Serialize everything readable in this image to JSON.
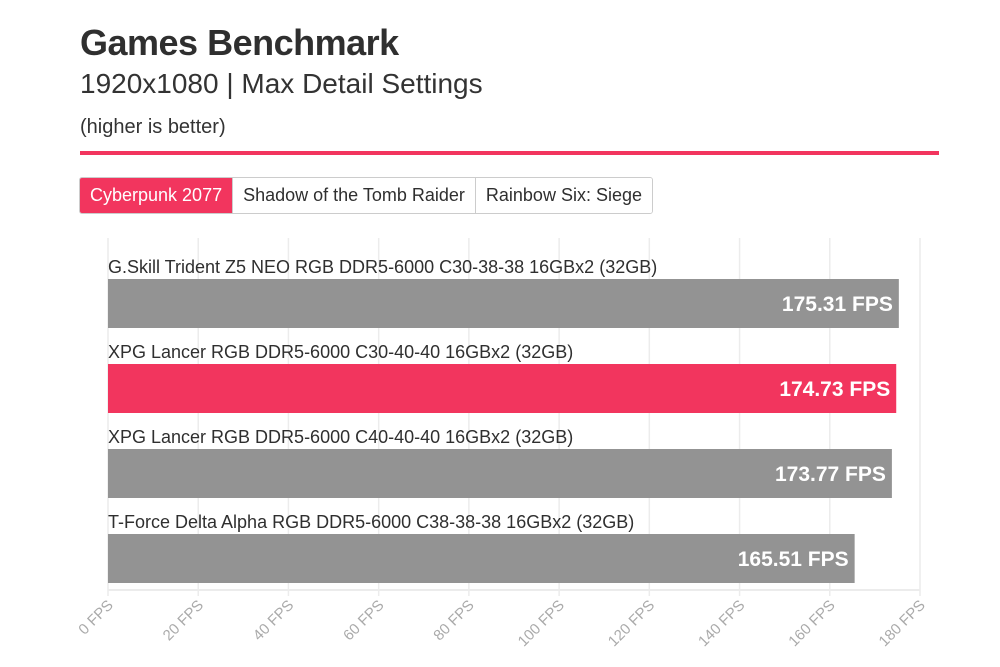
{
  "header": {
    "title": "Games Benchmark",
    "subtitle": "1920x1080 | Max Detail Settings",
    "note": "(higher is better)"
  },
  "tabs": [
    {
      "label": "Cyberpunk 2077",
      "active": true
    },
    {
      "label": "Shadow of the Tomb Raider",
      "active": false
    },
    {
      "label": "Rainbow Six: Siege",
      "active": false
    }
  ],
  "colors": {
    "accent": "#f2355e",
    "bar": "#939393",
    "grid": "#ececec",
    "tick": "#aaaaaa"
  },
  "chart_data": {
    "type": "bar",
    "orientation": "horizontal",
    "categories": [
      "G.Skill Trident Z5 NEO RGB DDR5-6000 C30-38-38 16GBx2 (32GB)",
      "XPG Lancer RGB DDR5-6000 C30-40-40 16GBx2 (32GB)",
      "XPG Lancer RGB DDR5-6000 C40-40-40 16GBx2 (32GB)",
      "T-Force Delta Alpha RGB DDR5-6000 C38-38-38 16GBx2 (32GB)"
    ],
    "values": [
      175.31,
      174.73,
      173.77,
      165.51
    ],
    "value_labels": [
      "175.31 FPS",
      "174.73 FPS",
      "173.77 FPS",
      "165.51 FPS"
    ],
    "highlight_index": 1,
    "xlim": [
      0,
      180
    ],
    "xticks": [
      0,
      20,
      40,
      60,
      80,
      100,
      120,
      140,
      160,
      180
    ],
    "xtick_labels": [
      "0 FPS",
      "20 FPS",
      "40 FPS",
      "60 FPS",
      "80 FPS",
      "100 FPS",
      "120 FPS",
      "140 FPS",
      "160 FPS",
      "180 FPS"
    ],
    "grid": true
  }
}
